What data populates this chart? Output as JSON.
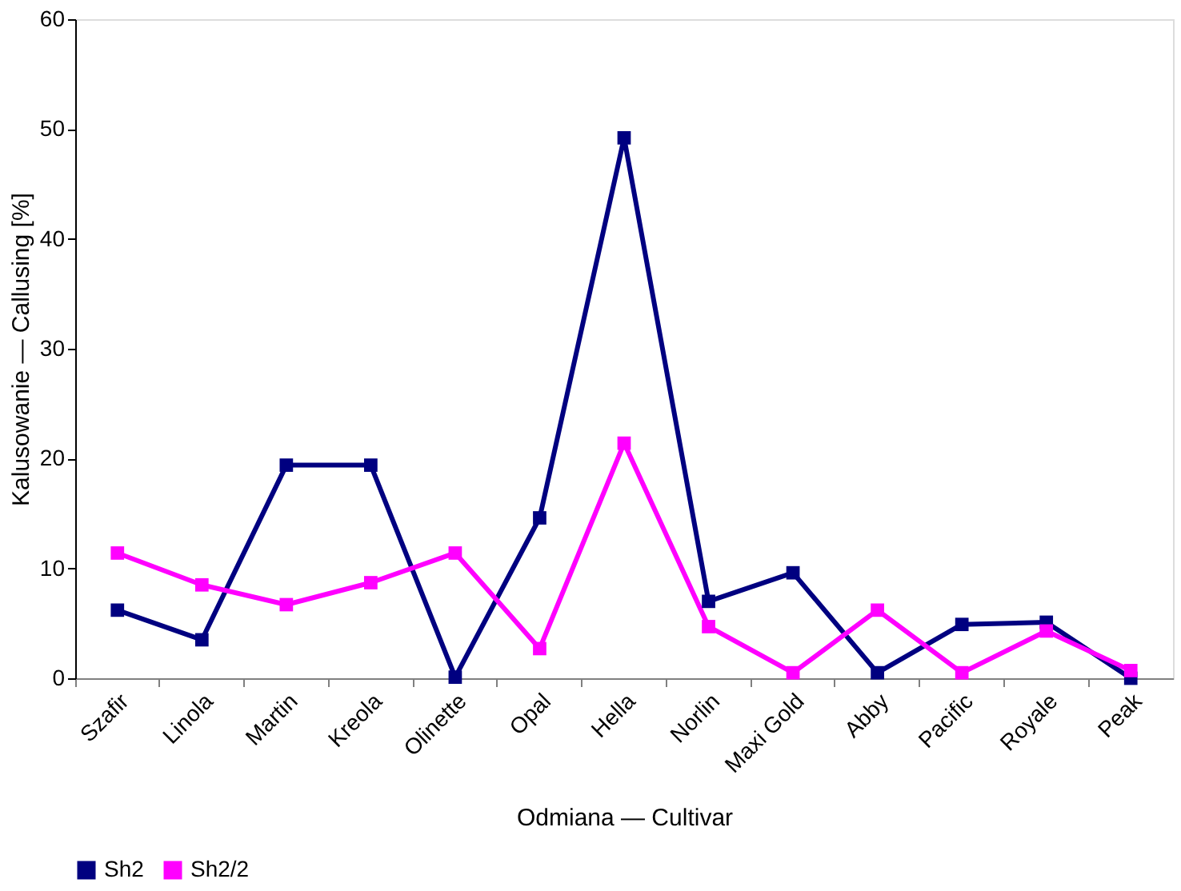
{
  "chart_data": {
    "type": "line",
    "xlabel": "Odmiana — Cultivar",
    "ylabel": "Kalusowanie — Callusing [%]",
    "categories": [
      "Szafir",
      "Linola",
      "Martin",
      "Kreola",
      "Olinette",
      "Opal",
      "Hella",
      "Norlin",
      "Maxi Gold",
      "Abby",
      "Pacific",
      "Royale",
      "Peak"
    ],
    "series": [
      {
        "name": "Sh2",
        "color": "#000080",
        "values": [
          6.2,
          3.5,
          19.4,
          19.4,
          0.1,
          14.6,
          49.2,
          7.0,
          9.6,
          0.5,
          4.9,
          5.1,
          0
        ]
      },
      {
        "name": "Sh2/2",
        "color": "#ff00ff",
        "values": [
          11.4,
          8.5,
          6.7,
          8.7,
          11.4,
          2.7,
          21.4,
          4.7,
          0.5,
          6.2,
          0.5,
          4.3,
          0.7
        ]
      }
    ],
    "ylim": [
      0,
      60
    ],
    "yticks": [
      0,
      10,
      20,
      30,
      40,
      50,
      60
    ],
    "grid": false,
    "legend": "bottom",
    "marker": "square",
    "line_style": "solid"
  }
}
